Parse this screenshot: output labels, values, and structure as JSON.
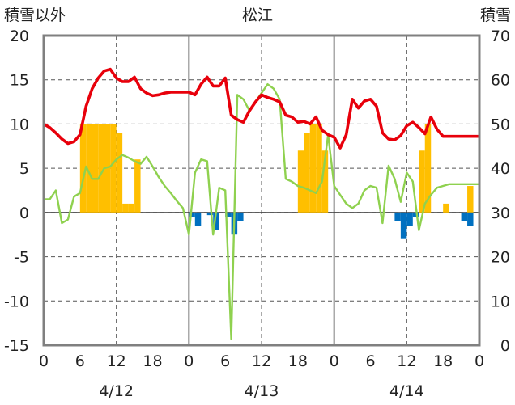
{
  "chart_data": {
    "type": "line",
    "title": "松江",
    "y_left_label": "積雪以外",
    "y_right_label": "積雪",
    "y_left_ticks": [
      "20",
      "15",
      "10",
      "5",
      "0",
      "-5",
      "-10",
      "-15"
    ],
    "y_right_ticks": [
      "70",
      "60",
      "50",
      "40",
      "30",
      "20",
      "10",
      "0"
    ],
    "ylim_left": [
      -15,
      20
    ],
    "ylim_right": [
      0,
      70
    ],
    "x_tick_labels": [
      "0",
      "6",
      "12",
      "18",
      "0",
      "6",
      "12",
      "18",
      "0",
      "6",
      "12",
      "18",
      "0"
    ],
    "x_hour_values": [
      0,
      6,
      12,
      18,
      24,
      30,
      36,
      42,
      48,
      54,
      60,
      66,
      72
    ],
    "xlim_hours": [
      0,
      72
    ],
    "date_labels": [
      {
        "text": "4/12",
        "hour": 12
      },
      {
        "text": "4/13",
        "hour": 36
      },
      {
        "text": "4/14",
        "hour": 60
      }
    ],
    "colors": {
      "temperature": "#e8000b",
      "precipitation": "#ffbf00",
      "temp_change": "#8fd14f",
      "snow_change": "#0070c0",
      "snow_depth": "#7030a0",
      "axis": "#808080"
    },
    "series": [
      {
        "key": "temperature",
        "x": [
          0,
          1,
          2,
          3,
          4,
          5,
          6,
          7,
          8,
          9,
          10,
          11,
          12,
          13,
          14,
          15,
          16,
          17,
          18,
          19,
          20,
          21,
          22,
          23,
          24,
          25,
          26,
          27,
          28,
          29,
          30,
          31,
          32,
          33,
          34,
          35,
          36,
          37,
          38,
          39,
          40,
          41,
          42,
          43,
          44,
          45,
          46,
          47,
          48,
          49,
          50,
          51,
          52,
          53,
          54,
          55,
          56,
          57,
          58,
          59,
          60,
          61,
          62,
          63,
          64,
          65,
          66,
          67,
          68,
          69,
          70,
          71,
          72
        ],
        "values": [
          10.0,
          9.6,
          9.0,
          8.3,
          7.8,
          8.0,
          8.8,
          12.0,
          14.0,
          15.2,
          16.0,
          16.2,
          15.2,
          14.8,
          14.8,
          15.3,
          14.0,
          13.5,
          13.2,
          13.3,
          13.5,
          13.6,
          13.6,
          13.6,
          13.6,
          13.3,
          14.5,
          15.3,
          14.3,
          14.3,
          15.2,
          11.0,
          10.5,
          10.2,
          11.5,
          12.5,
          13.3,
          13.0,
          12.8,
          12.5,
          11.0,
          10.8,
          10.2,
          10.3,
          10.0,
          10.8,
          9.3,
          8.8,
          8.5,
          7.3,
          8.8,
          12.8,
          11.8,
          12.6,
          12.8,
          12.0,
          9.0,
          8.3,
          8.2,
          8.7,
          9.8,
          10.2,
          9.6,
          8.9,
          10.8,
          9.4,
          8.6,
          8.6,
          8.6,
          8.6,
          8.6,
          8.6,
          8.6
        ]
      },
      {
        "key": "temp_change",
        "x": [
          0,
          1,
          2,
          3,
          4,
          5,
          6,
          7,
          8,
          9,
          10,
          11,
          12,
          13,
          14,
          15,
          16,
          17,
          18,
          19,
          20,
          21,
          22,
          23,
          24,
          25,
          26,
          27,
          28,
          29,
          30,
          31,
          32,
          33,
          34,
          35,
          36,
          37,
          38,
          39,
          40,
          41,
          42,
          43,
          44,
          45,
          46,
          47,
          48,
          49,
          50,
          51,
          52,
          53,
          54,
          55,
          56,
          57,
          58,
          59,
          60,
          61,
          62,
          63,
          64,
          65,
          66,
          67,
          68,
          69,
          70,
          71,
          72
        ],
        "values": [
          1.5,
          1.5,
          2.5,
          -1.2,
          -0.8,
          1.8,
          2.2,
          5.2,
          3.8,
          3.8,
          5.0,
          5.2,
          6.0,
          6.5,
          6.2,
          5.8,
          5.5,
          6.3,
          5.2,
          4.0,
          3.0,
          2.2,
          1.3,
          0.5,
          -2.5,
          4.5,
          6.0,
          5.8,
          -2.5,
          2.8,
          2.5,
          -14.3,
          13.3,
          12.8,
          11.5,
          12.5,
          13.5,
          14.5,
          14.0,
          12.8,
          3.8,
          3.5,
          3.0,
          2.8,
          2.5,
          2.2,
          3.5,
          8.8,
          3.0,
          2.0,
          1.0,
          0.5,
          1.0,
          2.5,
          3.0,
          2.8,
          -1.2,
          5.3,
          3.8,
          1.2,
          4.5,
          3.5,
          -2.0,
          1.0,
          2.0,
          2.8,
          3.0,
          3.2,
          3.2,
          3.2,
          3.2,
          3.2,
          3.2
        ]
      },
      {
        "key": "precipitation",
        "type": "bar",
        "x": [
          6,
          7,
          8,
          9,
          10,
          11,
          12,
          13,
          14,
          15,
          16,
          17,
          18,
          19,
          20,
          21,
          22,
          23,
          24,
          25,
          26,
          27,
          28,
          29,
          30,
          31,
          32,
          33,
          34,
          35,
          36,
          37,
          38,
          39,
          40,
          41,
          42,
          43,
          44,
          45,
          46,
          47,
          48,
          49,
          50,
          51,
          52,
          53,
          54,
          55,
          56,
          57,
          58,
          59,
          60,
          61,
          62,
          63,
          64,
          65,
          66,
          67,
          68,
          69,
          70,
          71
        ],
        "values": [
          10,
          10,
          10,
          10,
          10,
          10,
          9,
          1,
          1,
          6,
          0,
          0,
          0,
          0,
          0,
          0,
          0,
          0,
          0,
          0,
          0,
          0,
          0,
          0,
          0,
          0,
          0,
          0,
          0,
          0,
          0,
          0,
          0,
          0,
          0,
          0,
          7,
          9,
          10,
          10,
          7,
          0,
          0,
          0,
          0,
          0,
          0,
          0,
          0,
          0,
          0,
          0,
          0,
          0,
          0,
          0,
          7,
          10,
          0,
          0,
          1,
          0,
          0,
          0,
          3,
          0
        ]
      },
      {
        "key": "snow_change",
        "type": "bar",
        "x": [
          24,
          25,
          26,
          27,
          28,
          29,
          30,
          31,
          32,
          33,
          34,
          35,
          36,
          37,
          38,
          39,
          40,
          41,
          42,
          43,
          44,
          45,
          46,
          47,
          48,
          49,
          50,
          51,
          52,
          53,
          54,
          55,
          56,
          57,
          58,
          59,
          60,
          61,
          62,
          63,
          64,
          65,
          66,
          67,
          68,
          69,
          70,
          71
        ],
        "values": [
          -0.5,
          -1.5,
          0,
          -0.3,
          -2.0,
          0,
          -0.5,
          -2.5,
          -1.0,
          0,
          0,
          0,
          0,
          0,
          0,
          0,
          0,
          0,
          0,
          0,
          0,
          0,
          0,
          0,
          0,
          0,
          0,
          0,
          0,
          0,
          0,
          0,
          0,
          0,
          -1.0,
          -3.0,
          -1.5,
          -0.5,
          0,
          0,
          0,
          0,
          0,
          0,
          0,
          -1.0,
          -1.5,
          0
        ]
      },
      {
        "key": "snow_depth",
        "x": [
          0,
          72
        ],
        "values": [
          0,
          0
        ]
      }
    ],
    "grid": true
  }
}
